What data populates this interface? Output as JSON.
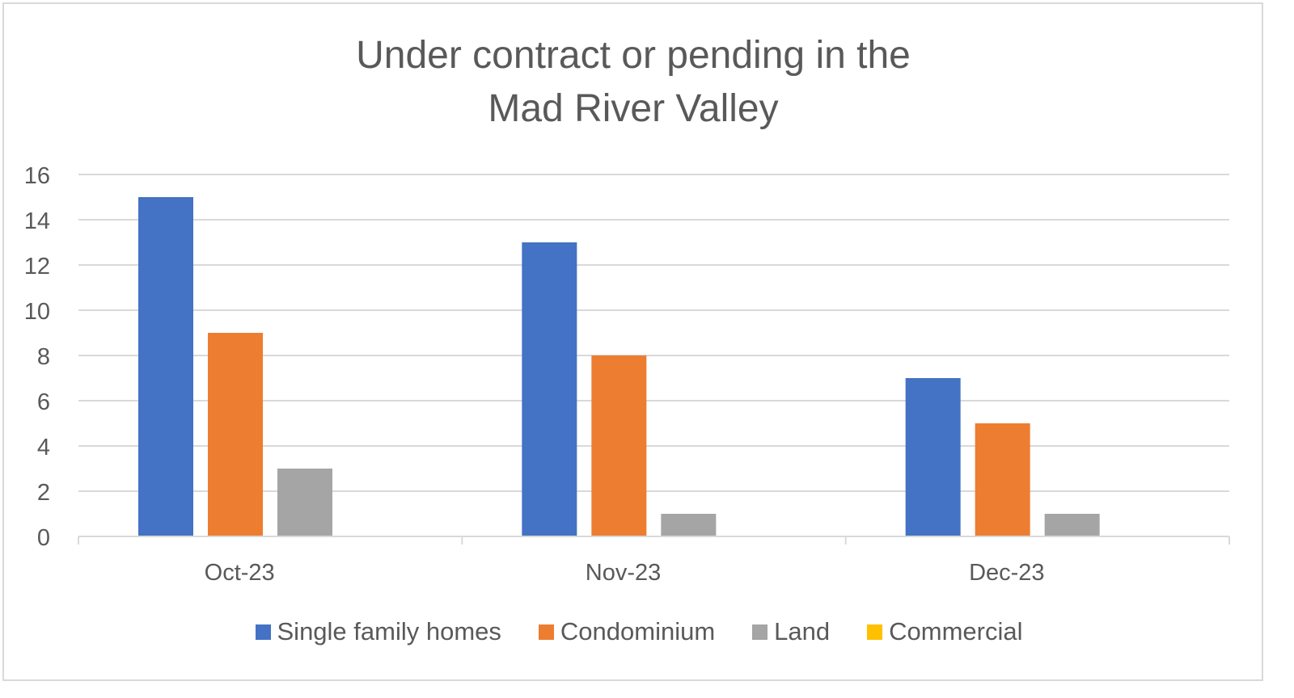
{
  "chart_data": {
    "type": "bar",
    "title_lines": [
      "Under contract or pending in the",
      "Mad River Valley"
    ],
    "categories": [
      "Oct-23",
      "Nov-23",
      "Dec-23"
    ],
    "series": [
      {
        "name": "Single family homes",
        "color": "#4472c4",
        "values": [
          15,
          13,
          7
        ]
      },
      {
        "name": "Condominium",
        "color": "#ed7d31",
        "values": [
          9,
          8,
          5
        ]
      },
      {
        "name": "Land",
        "color": "#a5a5a5",
        "values": [
          3,
          1,
          1
        ]
      },
      {
        "name": "Commercial",
        "color": "#ffc000",
        "values": [
          0,
          0,
          0
        ]
      }
    ],
    "ylim": [
      0,
      16
    ],
    "yticks": [
      "0",
      "2",
      "4",
      "6",
      "8",
      "10",
      "12",
      "14",
      "16"
    ],
    "grid": true,
    "legend_position": "bottom"
  }
}
